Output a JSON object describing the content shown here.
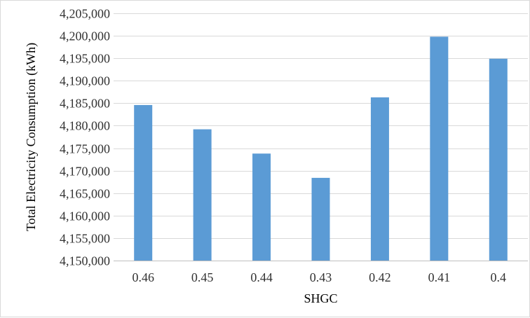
{
  "chart_data": {
    "type": "bar",
    "title": "",
    "xlabel": "SHGC",
    "ylabel": "Total Electricity Consumption (kWh)",
    "categories": [
      "0.46",
      "0.45",
      "0.44",
      "0.43",
      "0.42",
      "0.41",
      "0.4"
    ],
    "series": [
      {
        "values": [
          4184600,
          4179200,
          4173800,
          4168400,
          4186300,
          4199800,
          4194900
        ]
      }
    ],
    "ylim": [
      4150000,
      4205000
    ],
    "y_ticks": [
      4150000,
      4155000,
      4160000,
      4165000,
      4170000,
      4175000,
      4180000,
      4185000,
      4190000,
      4195000,
      4200000,
      4205000
    ],
    "y_tick_labels": [
      "4,150,000",
      "4,155,000",
      "4,160,000",
      "4,165,000",
      "4,170,000",
      "4,175,000",
      "4,180,000",
      "4,185,000",
      "4,190,000",
      "4,195,000",
      "4,200,000",
      "4,205,000"
    ],
    "grid": true,
    "legend": "none",
    "colors": {
      "bar": "#5b9bd5",
      "grid": "#d9d9d9",
      "axis": "#bfbfbf"
    }
  }
}
